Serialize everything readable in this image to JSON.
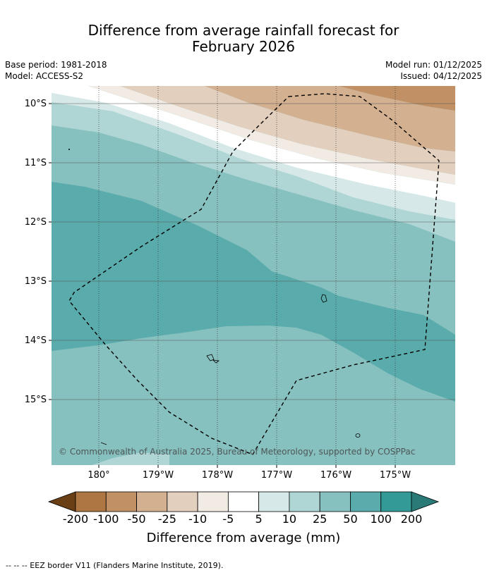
{
  "title_line1": "Difference from average rainfall forecast for",
  "title_line2": "February 2026",
  "base_period": "Base period: 1981-2018",
  "model": "Model: ACCESS-S2",
  "model_run": "Model run: 01/12/2025",
  "issued": "Issued: 04/12/2025",
  "lat_labels": [
    "10°S",
    "11°S",
    "12°S",
    "13°S",
    "14°S",
    "15°S"
  ],
  "lon_labels": [
    "180°",
    "179°W",
    "178°W",
    "177°W",
    "176°W",
    "175°W"
  ],
  "copyright": "© Commonwealth of Australia 2025, Bureau of Meteorology, supported by COSPPac",
  "colorbar": {
    "ticks": [
      "-200",
      "-100",
      "-50",
      "-25",
      "-10",
      "-5",
      "5",
      "10",
      "25",
      "50",
      "100",
      "200"
    ],
    "colors": [
      "#6b3f15",
      "#ad7642",
      "#c19065",
      "#d3b090",
      "#e3cfbd",
      "#f1ebe4",
      "#ffffff",
      "#d6e9e8",
      "#afd6d5",
      "#86c0bf",
      "#5aabab",
      "#339a98",
      "#2a7a78"
    ],
    "label": "Difference from average (mm)"
  },
  "footnote": "--  --  -- EEZ border V11 (Flanders Marine Institute, 2019)."
}
